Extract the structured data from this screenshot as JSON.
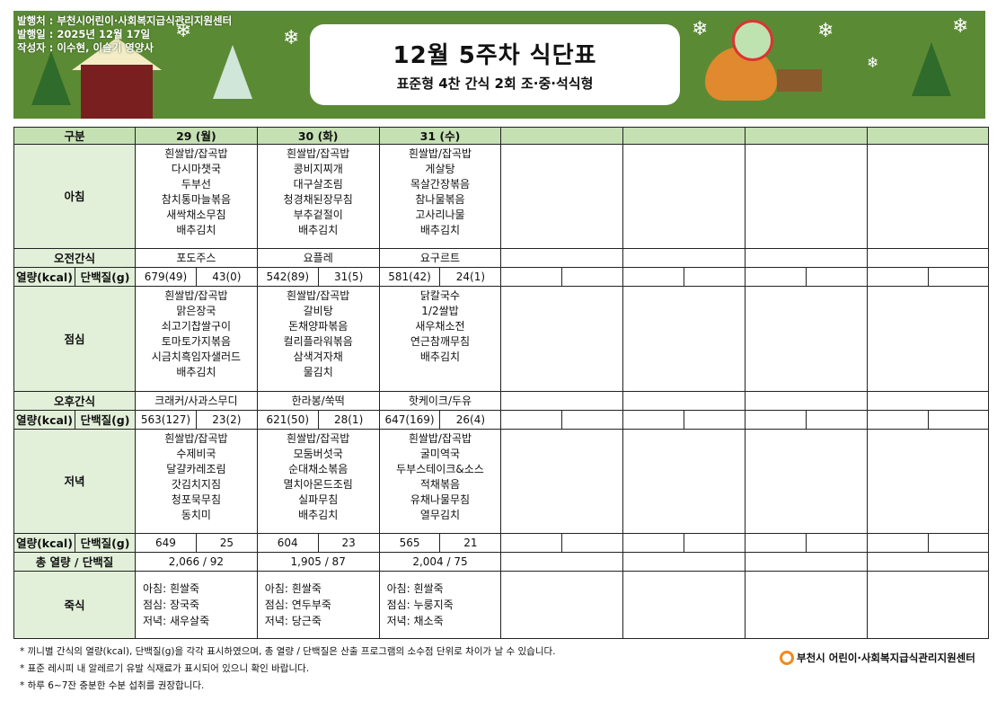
{
  "header": {
    "publisher": "발행처 : 부천시어린이·사회복지급식관리지원센터",
    "issue_date": "발행일 : 2025년 12월 17일",
    "author": "작성자 : 이수현, 이슬기 영양사",
    "title": "12월 5주차 식단표",
    "subtitle": "표준형 4찬 간식 2회 조·중·석식형",
    "banner_color": "#5b8a34"
  },
  "table": {
    "labels": {
      "category": "구분",
      "breakfast": "아침",
      "am_snack": "오전간식",
      "kcal": "열량(kcal)",
      "protein": "단백질(g)",
      "lunch": "점심",
      "pm_snack": "오후간식",
      "dinner": "저녁",
      "total": "총 열량 / 단백질",
      "porridge": "죽식"
    },
    "header_color": "#c5e0b3",
    "label_color": "#e2efd9",
    "days": [
      {
        "label": "29 (월)",
        "breakfast": [
          "흰쌀밥/잡곡밥",
          "다시마챗국",
          "두부선",
          "참치통마늘볶음",
          "새싹채소무침",
          "배추김치"
        ],
        "am_snack": "포도주스",
        "am_nutrition": {
          "kcal": "679(49)",
          "protein": "43(0)"
        },
        "lunch": [
          "흰쌀밥/잡곡밥",
          "맑은장국",
          "쇠고기찹쌀구이",
          "토마토가지볶음",
          "시금치흑임자샐러드",
          "배추김치"
        ],
        "pm_snack": "크래커/사과스무디",
        "pm_nutrition": {
          "kcal": "563(127)",
          "protein": "23(2)"
        },
        "dinner": [
          "흰쌀밥/잡곡밥",
          "수제비국",
          "달걀카레조림",
          "갓김치지짐",
          "청포묵무침",
          "동치미"
        ],
        "dinner_nutrition": {
          "kcal": "649",
          "protein": "25"
        },
        "total": "2,066  /  92",
        "porridge": [
          "아침: 흰쌀죽",
          "점심: 장국죽",
          "저녁: 새우살죽"
        ]
      },
      {
        "label": "30 (화)",
        "breakfast": [
          "흰쌀밥/잡곡밥",
          "콩비지찌개",
          "대구살조림",
          "청경채된장무침",
          "부추겉절이",
          "배추김치"
        ],
        "am_snack": "요플레",
        "am_nutrition": {
          "kcal": "542(89)",
          "protein": "31(5)"
        },
        "lunch": [
          "흰쌀밥/잡곡밥",
          "갈비탕",
          "돈채양파볶음",
          "컬리플라워볶음",
          "삼색겨자채",
          "물김치"
        ],
        "pm_snack": "한라봉/쑥떡",
        "pm_nutrition": {
          "kcal": "621(50)",
          "protein": "28(1)"
        },
        "dinner": [
          "흰쌀밥/잡곡밥",
          "모둠버섯국",
          "순대채소볶음",
          "멸치아몬드조림",
          "실파무침",
          "배추김치"
        ],
        "dinner_nutrition": {
          "kcal": "604",
          "protein": "23"
        },
        "total": "1,905  /  87",
        "porridge": [
          "아침: 흰쌀죽",
          "점심: 연두부죽",
          "저녁: 당근죽"
        ]
      },
      {
        "label": "31 (수)",
        "breakfast": [
          "흰쌀밥/잡곡밥",
          "게살탕",
          "목살간장볶음",
          "참나물볶음",
          "고사리나물",
          "배추김치"
        ],
        "am_snack": "요구르트",
        "am_nutrition": {
          "kcal": "581(42)",
          "protein": "24(1)"
        },
        "lunch": [
          "닭칼국수",
          "1/2쌀밥",
          "새우채소전",
          "연근참깨무침",
          "배추김치"
        ],
        "pm_snack": "핫케이크/두유",
        "pm_nutrition": {
          "kcal": "647(169)",
          "protein": "26(4)"
        },
        "dinner": [
          "흰쌀밥/잡곡밥",
          "굴미역국",
          "두부스테이크&소스",
          "적채볶음",
          "유채나물무침",
          "열무김치"
        ],
        "dinner_nutrition": {
          "kcal": "565",
          "protein": "21"
        },
        "total": "2,004  /  75",
        "porridge": [
          "아침: 흰쌀죽",
          "점심: 누룽지죽",
          "저녁: 채소죽"
        ]
      },
      {},
      {},
      {},
      {}
    ]
  },
  "footer": {
    "notes": [
      "* 끼니별 간식의 열량(kcal), 단백질(g)을 각각 표시하였으며, 총 열량 / 단백질은 산출 프로그램의 소수점 단위로 차이가 날 수 있습니다.",
      "* 표준 레시피 내 알레르기 유발 식재료가 표시되어 있으니 확인 바랍니다.",
      "* 하루 6~7잔 충분한 수분 섭취를 권장합니다."
    ],
    "logo_text": "부천시 어린이·사회복지급식관리지원센터",
    "logo_color": "#f08a1c"
  }
}
